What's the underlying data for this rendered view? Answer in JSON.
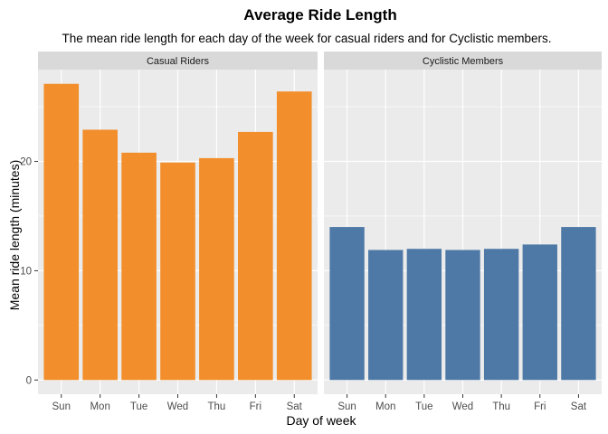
{
  "chart_data": {
    "type": "bar",
    "title": "Average Ride Length",
    "subtitle": "The mean ride length for each day of the week for casual riders and for Cyclistic members.",
    "xlabel": "Day of week",
    "ylabel": "Mean ride length (minutes)",
    "categories": [
      "Sun",
      "Mon",
      "Tue",
      "Wed",
      "Thu",
      "Fri",
      "Sat"
    ],
    "ylim": [
      -1.3,
      28.4
    ],
    "yticks": [
      0,
      10,
      20
    ],
    "grid": true,
    "legend": "none",
    "series": [
      {
        "name": "Casual Riders",
        "color": "#f28e2b",
        "values": [
          27.1,
          22.9,
          20.8,
          19.9,
          20.3,
          22.7,
          26.4
        ]
      },
      {
        "name": "Cyclistic Members",
        "color": "#4e79a7",
        "values": [
          14.0,
          11.9,
          12.0,
          11.9,
          12.0,
          12.4,
          14.0
        ]
      }
    ]
  }
}
